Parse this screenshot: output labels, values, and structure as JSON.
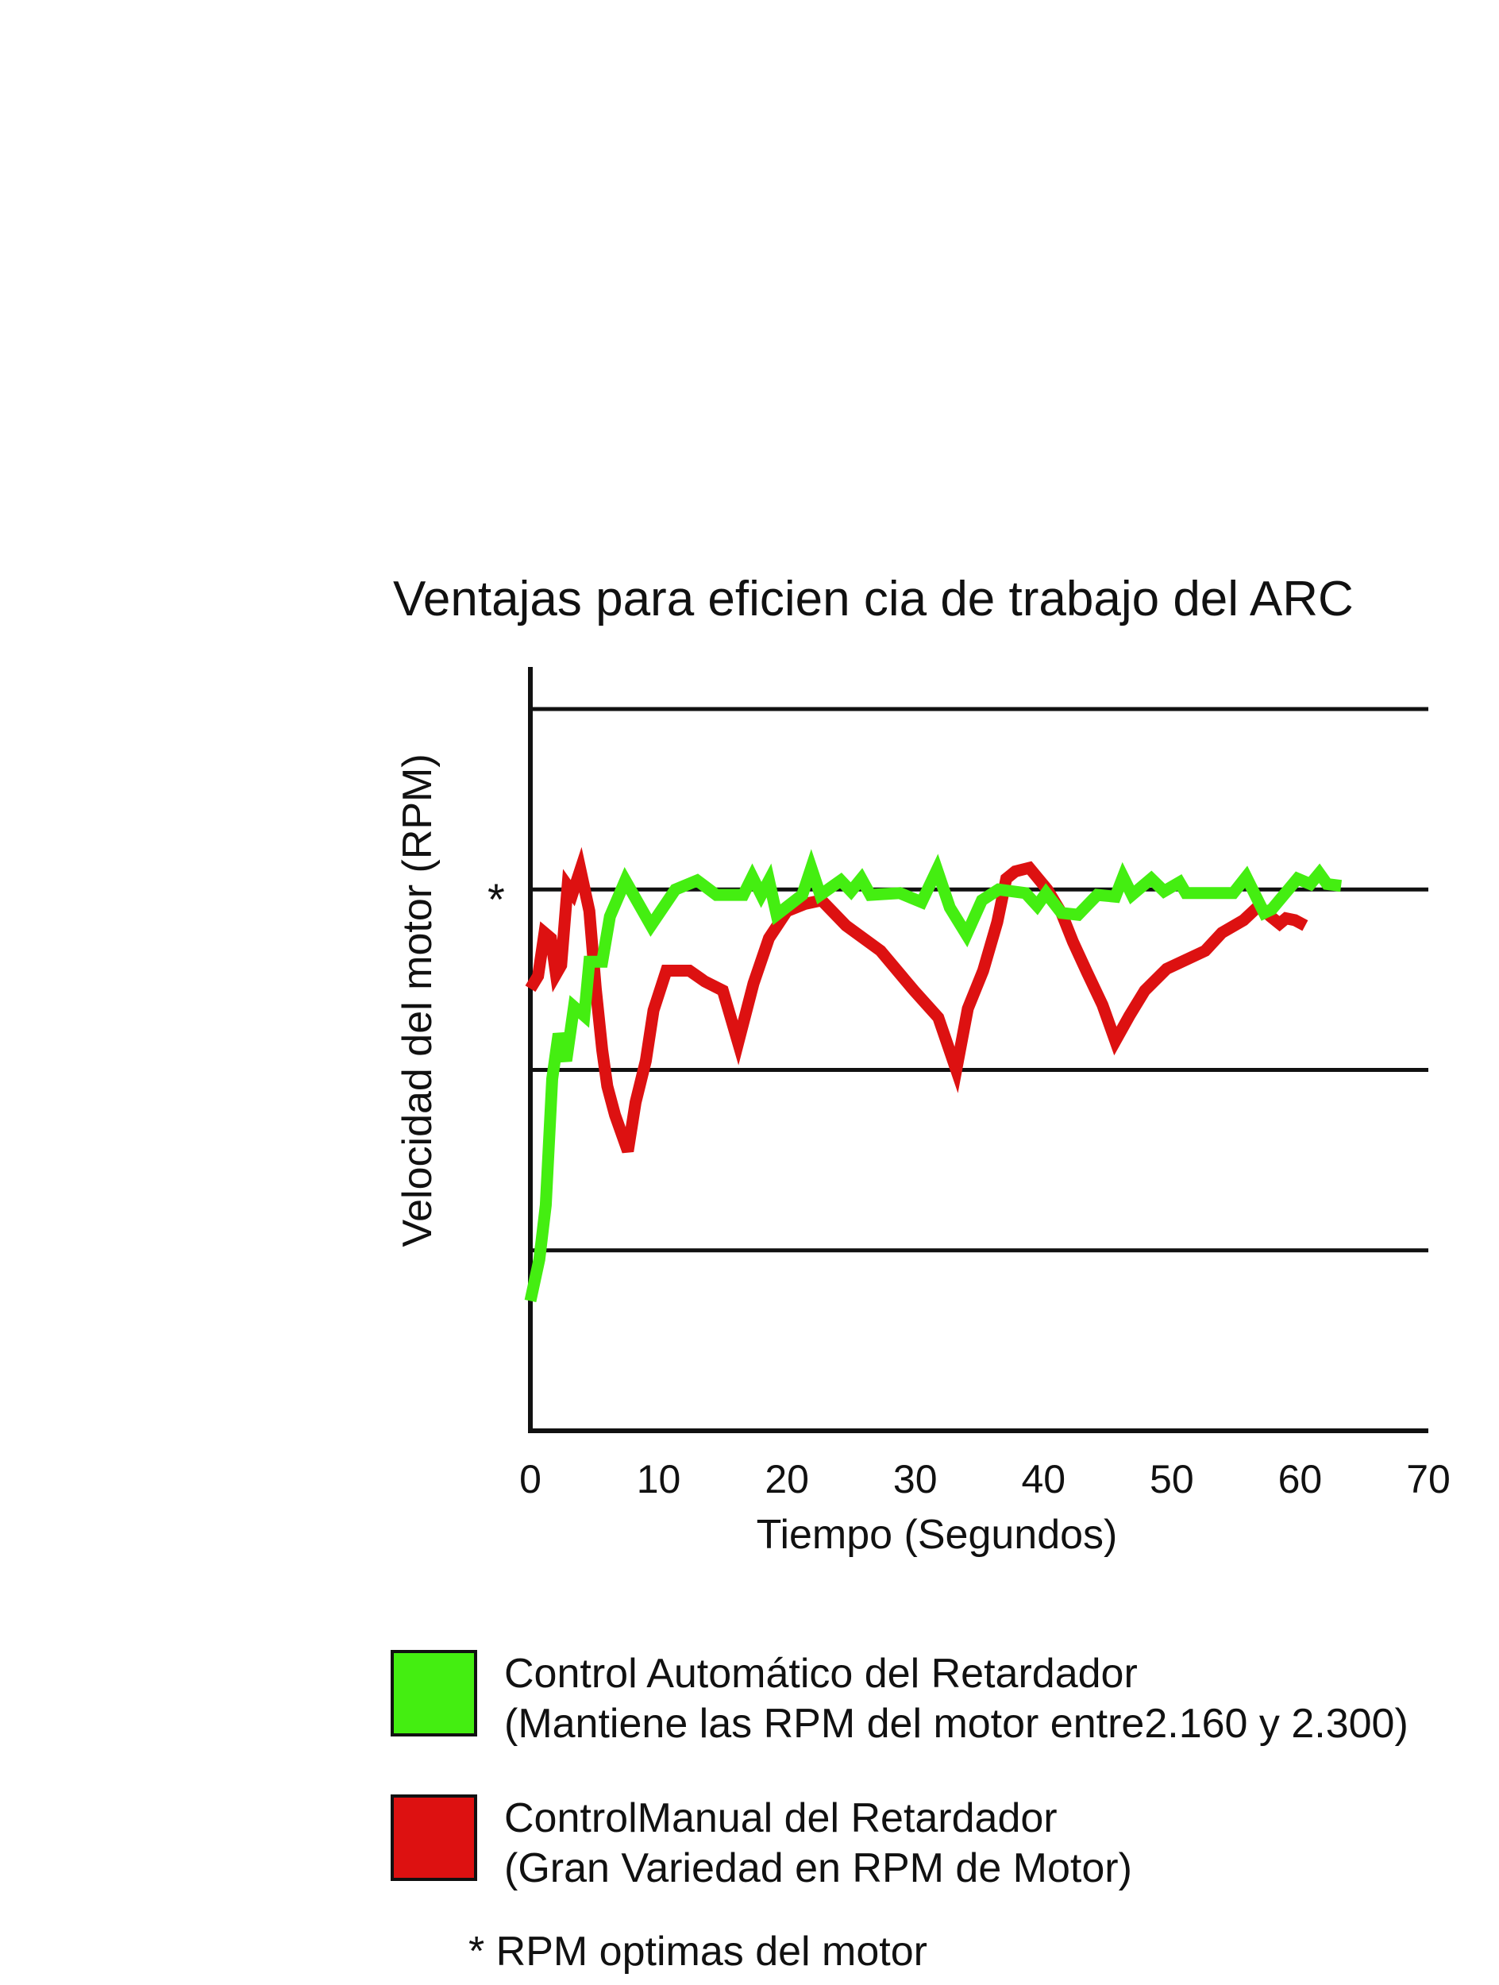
{
  "chart_data": {
    "type": "line",
    "title": "Ventajas para eficien cia de trabajo del ARC",
    "xlabel": "Tiempo (Segundos)",
    "ylabel": "Velocidad del motor (RPM)",
    "xlim": [
      0,
      70
    ],
    "ylim": [
      0,
      4
    ],
    "x_ticks": [
      "0",
      "10",
      "20",
      "30",
      "40",
      "50",
      "60",
      "70"
    ],
    "grid": true,
    "optimum_marker": "*",
    "series": [
      {
        "name": "Control Automático del Retardador",
        "color": "#44ee11",
        "points": [
          [
            0.0,
            0.72
          ],
          [
            0.7,
            0.95
          ],
          [
            1.2,
            1.25
          ],
          [
            1.7,
            1.95
          ],
          [
            2.2,
            2.2
          ],
          [
            2.8,
            2.05
          ],
          [
            3.4,
            2.35
          ],
          [
            4.2,
            2.3
          ],
          [
            4.6,
            2.6
          ],
          [
            5.6,
            2.6
          ],
          [
            6.2,
            2.85
          ],
          [
            7.4,
            3.05
          ],
          [
            9.4,
            2.8
          ],
          [
            11.3,
            3.0
          ],
          [
            13.0,
            3.05
          ],
          [
            14.5,
            2.97
          ],
          [
            16.6,
            2.97
          ],
          [
            17.3,
            3.07
          ],
          [
            18.0,
            2.97
          ],
          [
            18.6,
            3.05
          ],
          [
            19.2,
            2.86
          ],
          [
            21.2,
            2.97
          ],
          [
            21.9,
            3.12
          ],
          [
            22.6,
            2.97
          ],
          [
            24.2,
            3.05
          ],
          [
            25.0,
            2.99
          ],
          [
            25.8,
            3.06
          ],
          [
            26.5,
            2.97
          ],
          [
            28.8,
            2.98
          ],
          [
            30.5,
            2.93
          ],
          [
            31.7,
            3.11
          ],
          [
            32.7,
            2.9
          ],
          [
            34.0,
            2.75
          ],
          [
            35.2,
            2.94
          ],
          [
            36.5,
            3.0
          ],
          [
            38.6,
            2.98
          ],
          [
            39.5,
            2.91
          ],
          [
            40.2,
            2.98
          ],
          [
            41.4,
            2.87
          ],
          [
            42.7,
            2.86
          ],
          [
            44.2,
            2.97
          ],
          [
            45.6,
            2.96
          ],
          [
            46.2,
            3.07
          ],
          [
            46.9,
            2.97
          ],
          [
            48.4,
            3.06
          ],
          [
            49.4,
            2.99
          ],
          [
            50.6,
            3.04
          ],
          [
            51.1,
            2.98
          ],
          [
            54.8,
            2.98
          ],
          [
            55.8,
            3.07
          ],
          [
            57.2,
            2.87
          ],
          [
            57.8,
            2.89
          ],
          [
            59.8,
            3.06
          ],
          [
            60.8,
            3.03
          ],
          [
            61.5,
            3.09
          ],
          [
            62.1,
            3.03
          ],
          [
            63.2,
            3.02
          ]
        ]
      },
      {
        "name": "ControlManual del Retardador",
        "color": "#dd1111",
        "points": [
          [
            0.0,
            2.45
          ],
          [
            0.6,
            2.52
          ],
          [
            1.1,
            2.76
          ],
          [
            1.6,
            2.73
          ],
          [
            2.0,
            2.53
          ],
          [
            2.4,
            2.58
          ],
          [
            2.9,
            3.02
          ],
          [
            3.3,
            2.98
          ],
          [
            3.9,
            3.11
          ],
          [
            4.6,
            2.88
          ],
          [
            5.1,
            2.45
          ],
          [
            5.6,
            2.11
          ],
          [
            6.0,
            1.91
          ],
          [
            6.6,
            1.75
          ],
          [
            7.6,
            1.55
          ],
          [
            8.2,
            1.82
          ],
          [
            9.0,
            2.05
          ],
          [
            9.6,
            2.33
          ],
          [
            10.6,
            2.55
          ],
          [
            12.4,
            2.55
          ],
          [
            13.6,
            2.49
          ],
          [
            15.0,
            2.44
          ],
          [
            16.2,
            2.15
          ],
          [
            17.4,
            2.48
          ],
          [
            18.6,
            2.73
          ],
          [
            20.0,
            2.88
          ],
          [
            21.4,
            2.92
          ],
          [
            22.7,
            2.94
          ],
          [
            24.6,
            2.8
          ],
          [
            27.3,
            2.66
          ],
          [
            29.9,
            2.44
          ],
          [
            31.8,
            2.29
          ],
          [
            33.2,
            2.0
          ],
          [
            34.1,
            2.34
          ],
          [
            35.3,
            2.55
          ],
          [
            36.4,
            2.82
          ],
          [
            37.1,
            3.06
          ],
          [
            37.8,
            3.1
          ],
          [
            38.9,
            3.12
          ],
          [
            40.3,
            3.0
          ],
          [
            41.4,
            2.87
          ],
          [
            42.3,
            2.71
          ],
          [
            43.4,
            2.54
          ],
          [
            44.6,
            2.36
          ],
          [
            45.6,
            2.16
          ],
          [
            46.7,
            2.3
          ],
          [
            47.9,
            2.44
          ],
          [
            49.6,
            2.56
          ],
          [
            52.6,
            2.66
          ],
          [
            53.9,
            2.76
          ],
          [
            55.6,
            2.83
          ],
          [
            56.8,
            2.91
          ],
          [
            57.7,
            2.85
          ],
          [
            58.4,
            2.81
          ],
          [
            58.9,
            2.84
          ],
          [
            59.6,
            2.83
          ],
          [
            60.4,
            2.8
          ]
        ]
      }
    ],
    "legend": [
      {
        "line1": "Control Automático del Retardador",
        "line2": "(Mantiene las RPM del motor entre2.160 y 2.300)",
        "color": "#44ee11"
      },
      {
        "line1": "ControlManual del Retardador",
        "line2": "(Gran Variedad en RPM de Motor)",
        "color": "#dd1111"
      }
    ],
    "footnote": "* RPM optimas del motor"
  }
}
